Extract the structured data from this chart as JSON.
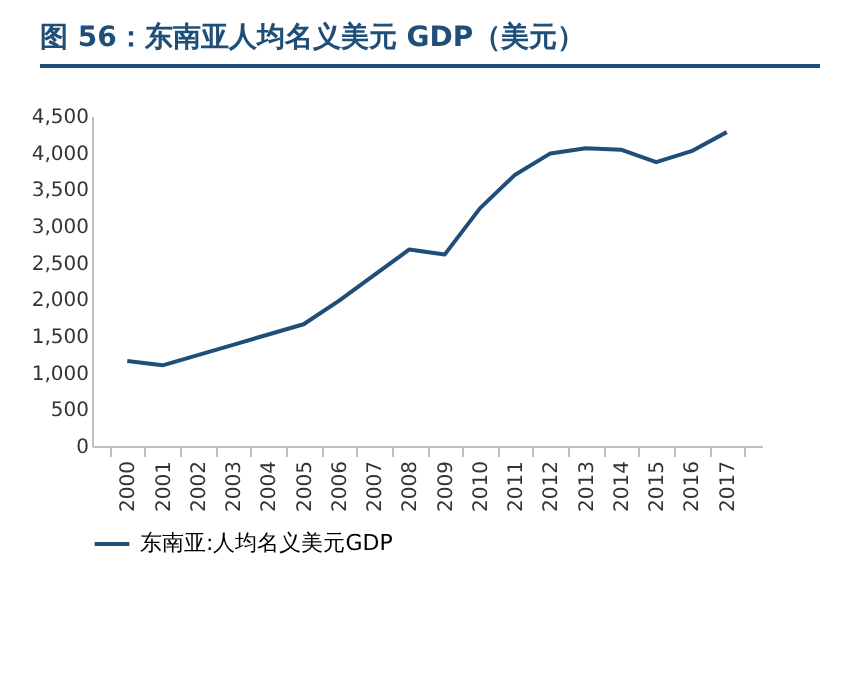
{
  "chart_data": {
    "type": "line",
    "title": "图 56：东南亚人均名义美元 GDP（美元）",
    "categories": [
      "2000",
      "2001",
      "2002",
      "2003",
      "2004",
      "2005",
      "2006",
      "2007",
      "2008",
      "2009",
      "2010",
      "2011",
      "2012",
      "2013",
      "2014",
      "2015",
      "2016",
      "2017"
    ],
    "series": [
      {
        "name": "东南亚:人均名义美元GDP",
        "color": "#1f4e79",
        "values": [
          1160,
          1100,
          1240,
          1380,
          1520,
          1660,
          1980,
          2330,
          2680,
          2610,
          3240,
          3700,
          3990,
          4060,
          4040,
          3870,
          4020,
          4280
        ]
      }
    ],
    "ylim": [
      0,
      4500
    ],
    "yticks": [
      0,
      {
        "value": 500,
        "label": "500"
      },
      {
        "value": 1000,
        "label": "1,000"
      },
      {
        "value": 1500,
        "label": "1,500"
      },
      {
        "value": 2000,
        "label": "2,000"
      },
      {
        "value": 2500,
        "label": "2,500"
      },
      {
        "value": 3000,
        "label": "3,000"
      },
      {
        "value": 3500,
        "label": "3,500"
      },
      {
        "value": 4000,
        "label": "4,000"
      },
      {
        "value": 4500,
        "label": "4,500"
      }
    ],
    "grid": false,
    "legend": "bottom",
    "marker": "none",
    "line_style": "solid"
  }
}
